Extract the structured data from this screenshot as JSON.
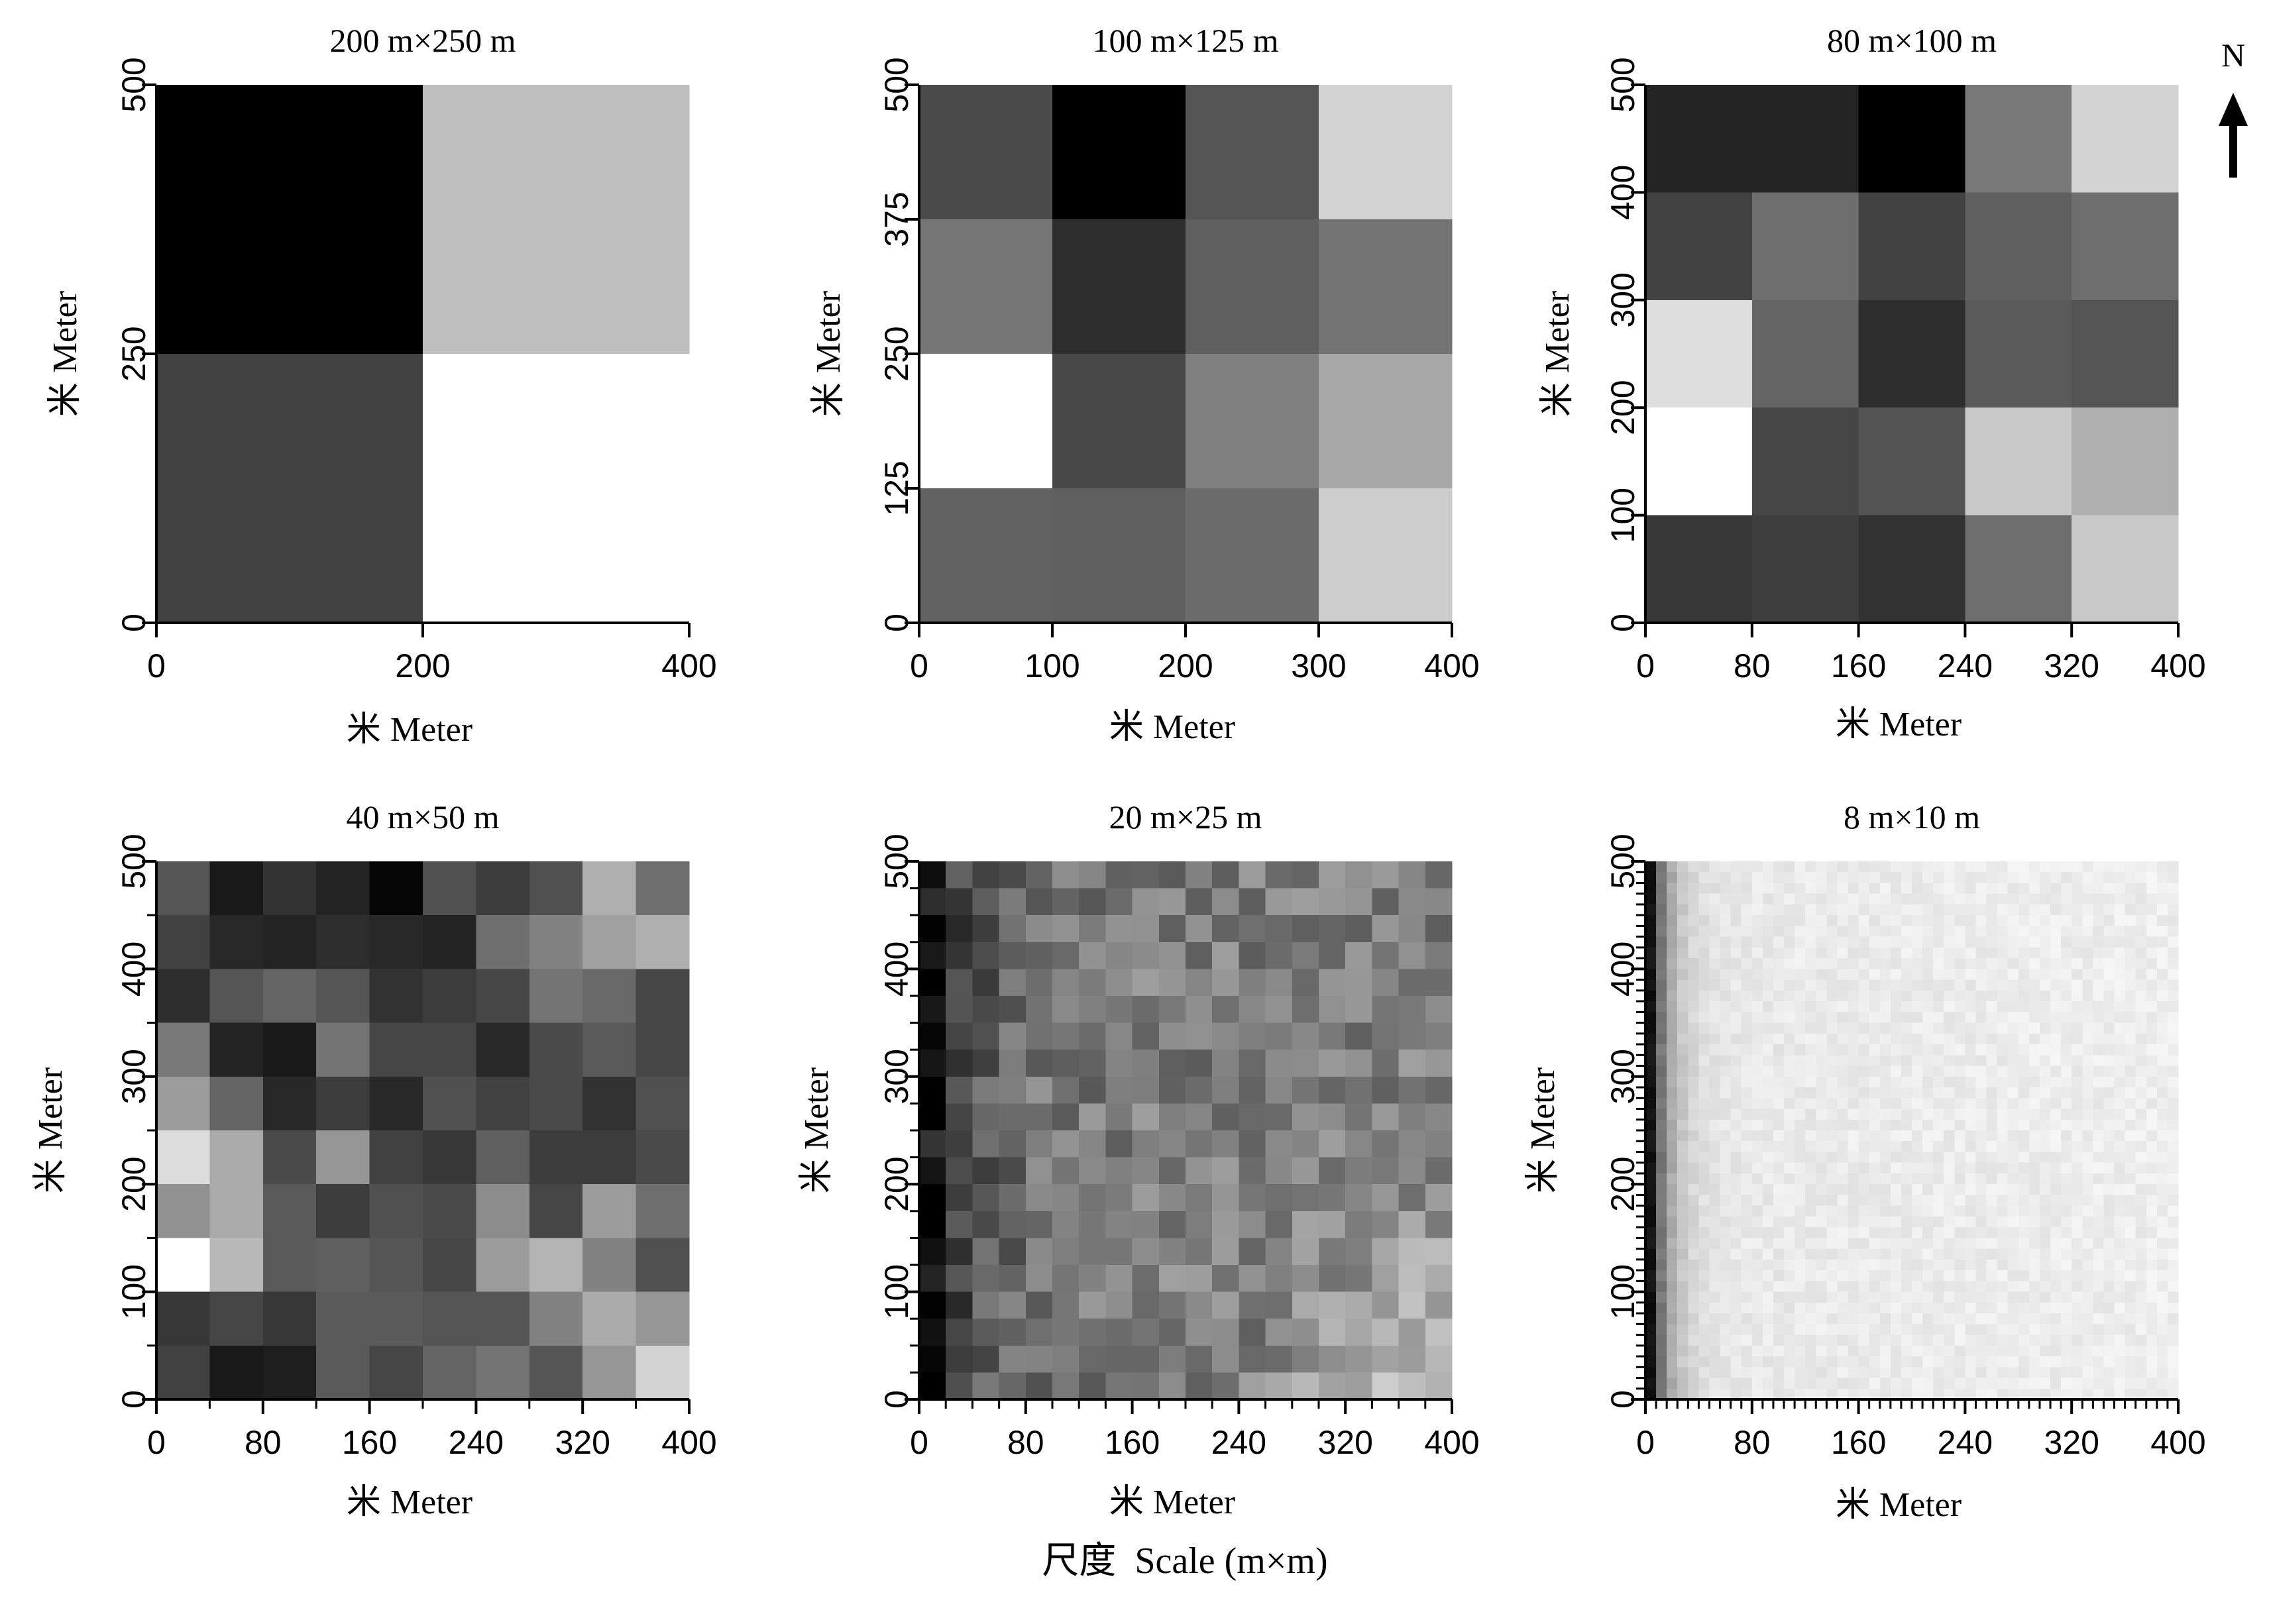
{
  "figure": {
    "xlabel_prefix": "米",
    "xlabel": "Meter",
    "ylabel_prefix": "米",
    "ylabel": "Meter",
    "caption_cn": "尺度",
    "caption_en": "Scale (m×m)",
    "north_label": "N",
    "colors": {
      "black": "#000000",
      "white": "#ffffff"
    }
  },
  "chart_data": [
    {
      "type": "heatmap",
      "title": "200 m×250 m",
      "xlabel": "米 Meter",
      "ylabel": "米 Meter",
      "xlim": [
        0,
        400
      ],
      "ylim": [
        0,
        500
      ],
      "xticks": [
        0,
        200,
        400
      ],
      "yticks": [
        0,
        250,
        500
      ],
      "minor_ticks": false,
      "value_scale": "grayscale 0 (black) to 255 (white)",
      "rows_from_top": [
        [
          0,
          190
        ],
        [
          66,
          255
        ]
      ]
    },
    {
      "type": "heatmap",
      "title": "100 m×125 m",
      "xlabel": "米 Meter",
      "ylabel": "米 Meter",
      "xlim": [
        0,
        400
      ],
      "ylim": [
        0,
        500
      ],
      "xticks": [
        0,
        100,
        200,
        300,
        400
      ],
      "yticks": [
        0,
        125,
        250,
        375,
        500
      ],
      "minor_ticks": false,
      "value_scale": "grayscale 0 (black) to 255 (white)",
      "rows_from_top": [
        [
          75,
          0,
          85,
          210
        ],
        [
          118,
          45,
          95,
          115
        ],
        [
          255,
          72,
          128,
          168
        ],
        [
          98,
          95,
          108,
          205
        ]
      ]
    },
    {
      "type": "heatmap",
      "title": "80 m×100 m",
      "xlabel": "米 Meter",
      "ylabel": "米 Meter",
      "xlim": [
        0,
        400
      ],
      "ylim": [
        0,
        500
      ],
      "xticks": [
        0,
        80,
        160,
        240,
        320,
        400
      ],
      "yticks": [
        0,
        100,
        200,
        300,
        400,
        500
      ],
      "minor_ticks": false,
      "value_scale": "grayscale 0 (black) to 255 (white)",
      "rows_from_top": [
        [
          36,
          36,
          0,
          120,
          210
        ],
        [
          66,
          110,
          66,
          95,
          110
        ],
        [
          222,
          100,
          45,
          90,
          85
        ],
        [
          255,
          70,
          84,
          200,
          175
        ],
        [
          55,
          62,
          50,
          110,
          200
        ]
      ]
    },
    {
      "type": "heatmap",
      "title": "40 m×50 m",
      "xlabel": "米 Meter",
      "ylabel": "米 Meter",
      "xlim": [
        0,
        400
      ],
      "ylim": [
        0,
        500
      ],
      "xticks": [
        0,
        80,
        160,
        240,
        320,
        400
      ],
      "yticks": [
        0,
        100,
        200,
        300,
        400,
        500
      ],
      "minor_ticks": true,
      "value_scale": "grayscale 0 (black) to 255 (white)",
      "rows_from_top": [
        [
          85,
          25,
          50,
          35,
          5,
          80,
          60,
          80,
          175,
          110
        ],
        [
          65,
          40,
          35,
          45,
          40,
          35,
          110,
          130,
          160,
          175
        ],
        [
          45,
          85,
          100,
          85,
          50,
          60,
          70,
          115,
          105,
          70
        ],
        [
          120,
          35,
          25,
          115,
          70,
          70,
          40,
          75,
          90,
          70
        ],
        [
          155,
          100,
          40,
          60,
          40,
          80,
          65,
          75,
          50,
          80
        ],
        [
          220,
          170,
          75,
          150,
          65,
          55,
          95,
          60,
          60,
          75
        ],
        [
          145,
          170,
          90,
          60,
          80,
          75,
          140,
          70,
          155,
          110
        ],
        [
          255,
          185,
          90,
          95,
          85,
          70,
          155,
          180,
          130,
          80
        ],
        [
          55,
          70,
          55,
          90,
          90,
          85,
          85,
          130,
          170,
          150
        ],
        [
          65,
          25,
          30,
          90,
          70,
          100,
          115,
          85,
          150,
          210
        ]
      ]
    },
    {
      "type": "heatmap",
      "title": "20 m×25 m",
      "xlabel": "米 Meter",
      "ylabel": "米 Meter",
      "xlim": [
        0,
        400
      ],
      "ylim": [
        0,
        500
      ],
      "xticks": [
        0,
        80,
        160,
        240,
        320,
        400
      ],
      "yticks": [
        0,
        100,
        200,
        300,
        400,
        500
      ],
      "minor_ticks": true,
      "value_scale": "grayscale 0 (black) to 255 (white)",
      "grid": [
        20,
        20
      ],
      "pattern": "dark left columns, mid-gray interior, brightest cells toward lower right",
      "gradient_anchors": {
        "left_edge": 20,
        "interior": 125,
        "lower_right": 220
      }
    },
    {
      "type": "heatmap",
      "title": "8 m×10 m",
      "xlabel": "米 Meter",
      "ylabel": "米 Meter",
      "xlim": [
        0,
        400
      ],
      "ylim": [
        0,
        500
      ],
      "xticks": [
        0,
        80,
        160,
        240,
        320,
        400
      ],
      "yticks": [
        0,
        100,
        200,
        300,
        400,
        500
      ],
      "minor_ticks": true,
      "value_scale": "grayscale 0 (black) to 255 (white)",
      "grid": [
        50,
        50
      ],
      "pattern": "dark narrow strip at left edge fading quickly to near-white",
      "gradient_anchors": {
        "left_edge": 25,
        "interior": 238
      }
    }
  ]
}
